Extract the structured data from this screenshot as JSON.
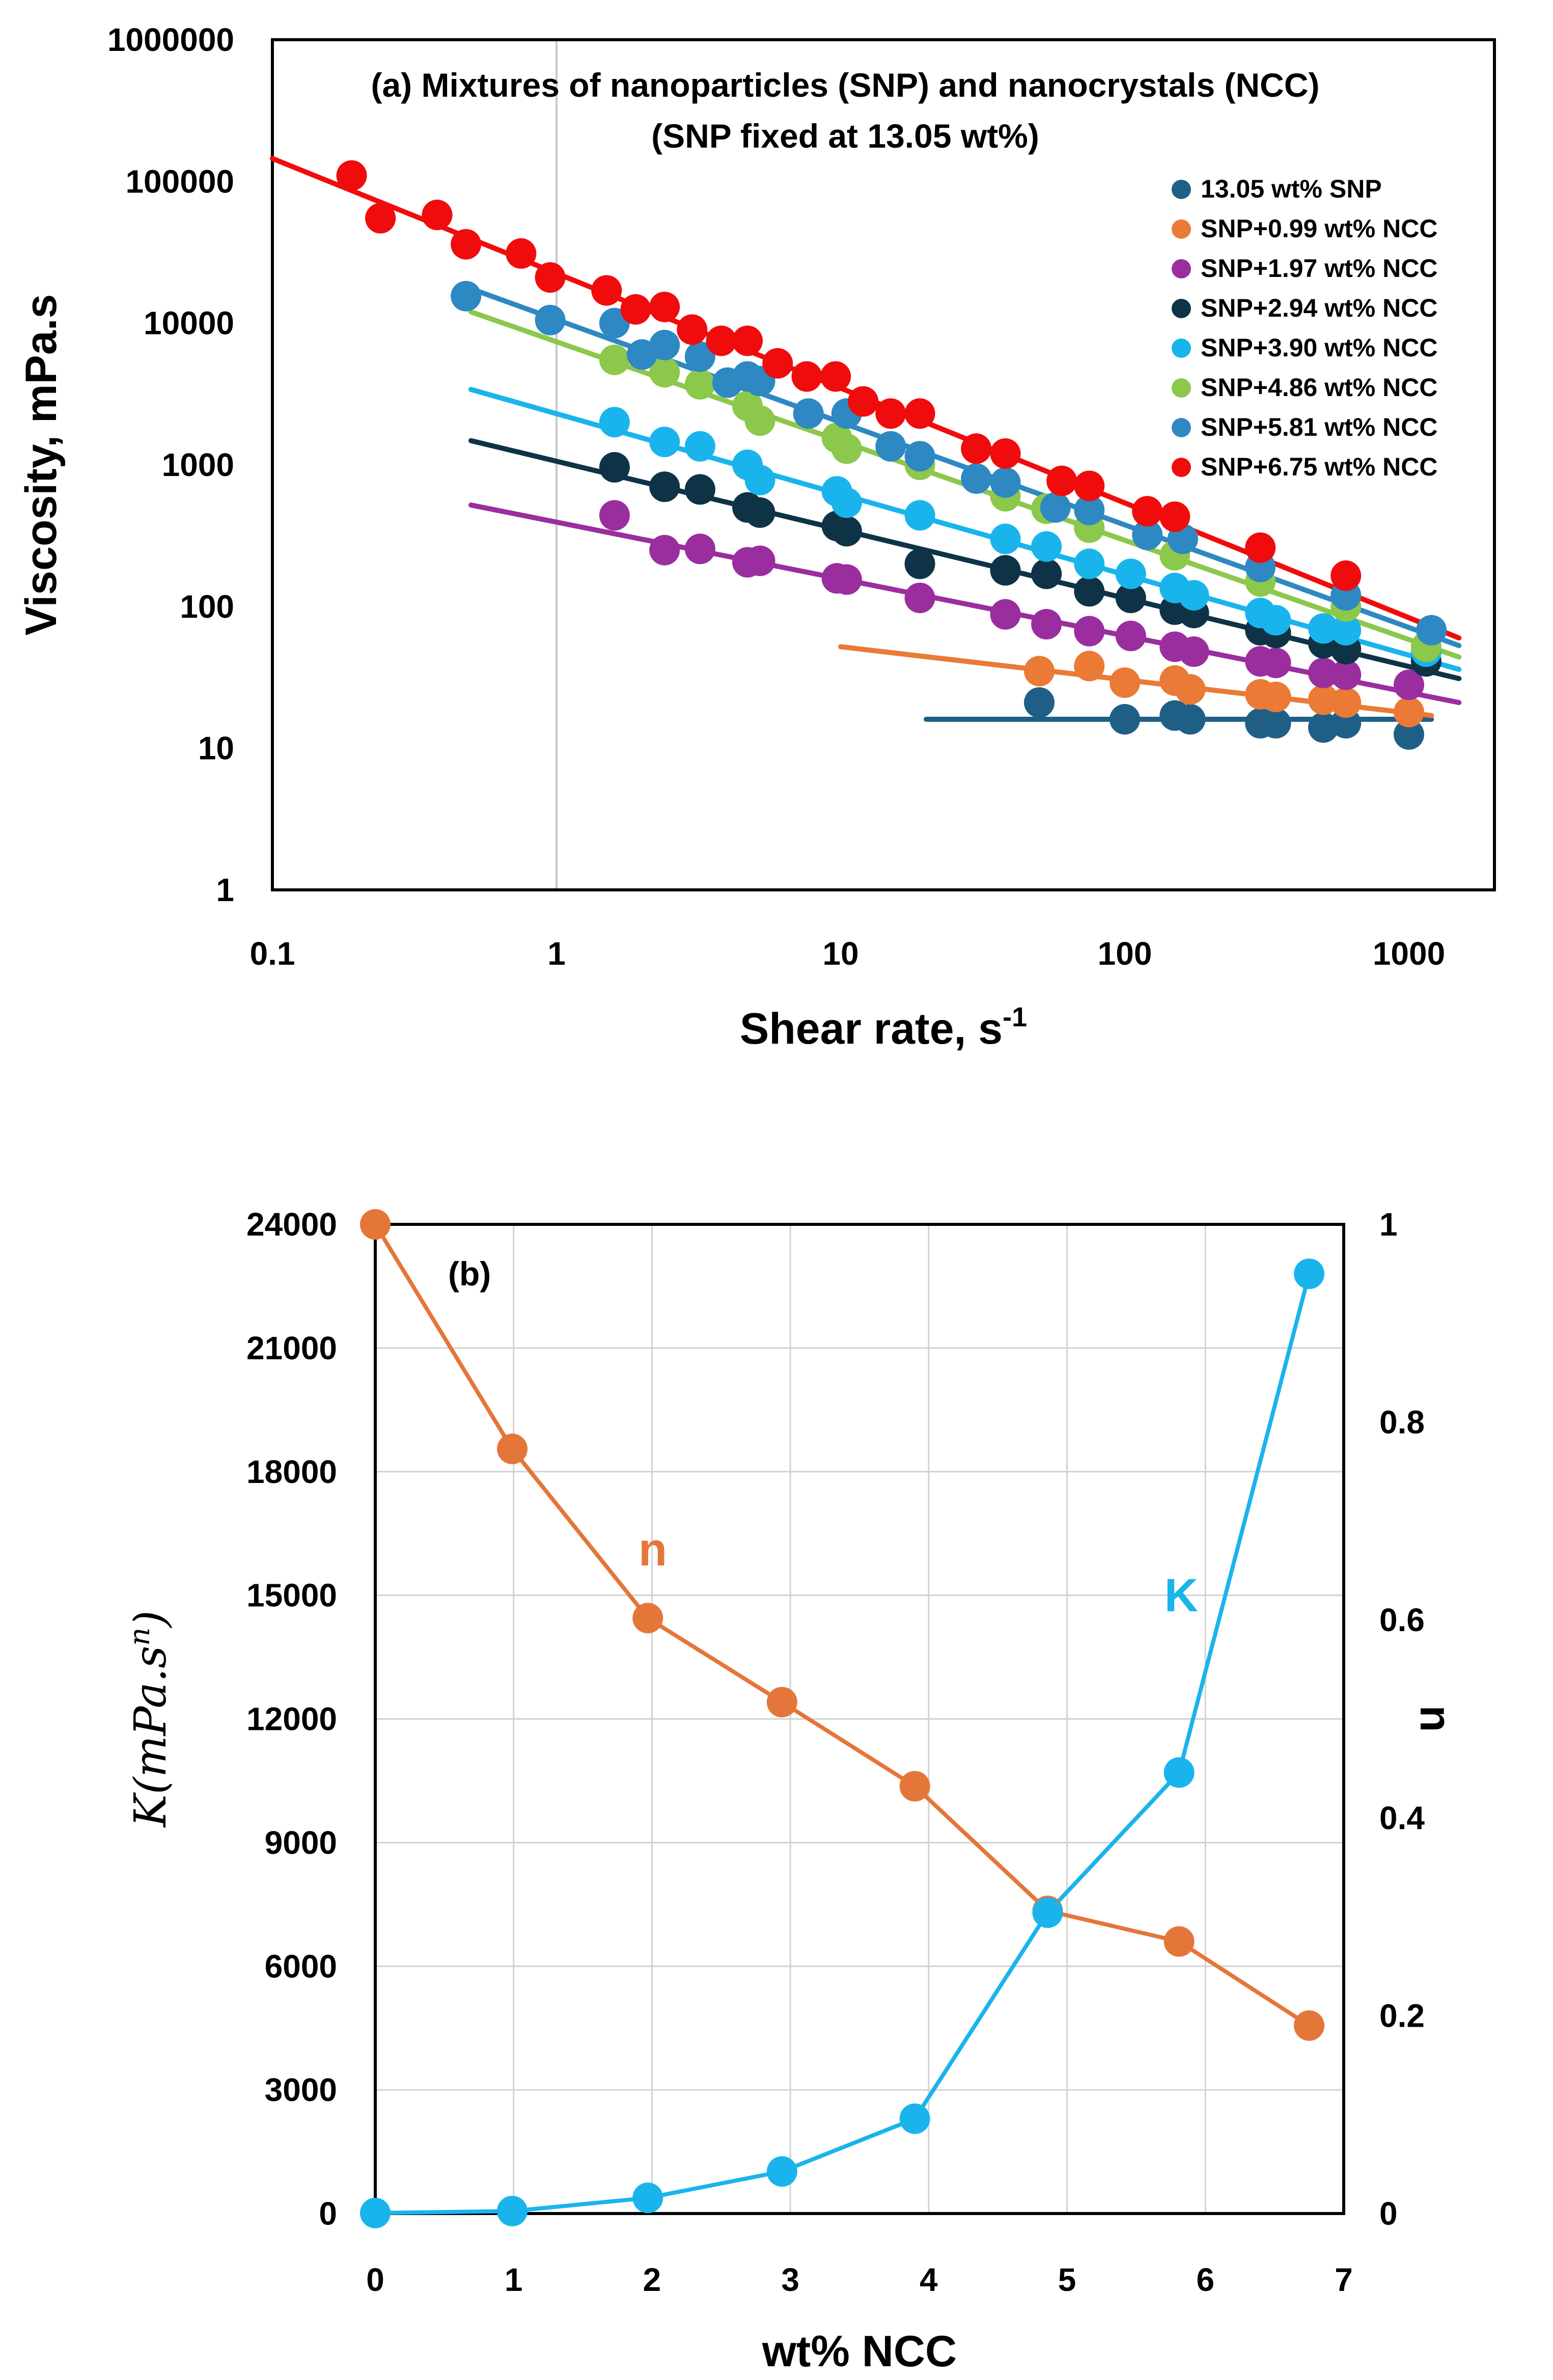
{
  "colors": {
    "s0": "#1f5f86",
    "s1": "#ea7a35",
    "s2": "#9a2e9f",
    "s3": "#0e3347",
    "s4": "#1ab4ec",
    "s5": "#8cc84b",
    "s6": "#2e88c2",
    "s7": "#f00c0c",
    "n": "#e4763a",
    "K": "#1ab4ec"
  },
  "chart_data": [
    {
      "id": "a",
      "type": "scatter",
      "xscale": "log",
      "yscale": "log",
      "title": "(a) Mixtures of nanoparticles (SNP) and nanocrystals (NCC)",
      "subtitle": "(SNP fixed at 13.05 wt%)",
      "xlabel": "Shear rate, s",
      "xlabel_sup": "-1",
      "ylabel": "Viscosity, mPa.s",
      "xlim": [
        0.1,
        2000
      ],
      "ylim": [
        1,
        1000000
      ],
      "xticks": [
        "0.1",
        "1",
        "10",
        "100",
        "1000"
      ],
      "yticks": [
        "1",
        "10",
        "100",
        "1000",
        "10000",
        "100000",
        "1000000"
      ],
      "legend_position": "top-right",
      "series": [
        {
          "name": "13.05 wt% SNP",
          "color": "#1f5f86",
          "x": [
            50,
            100,
            150,
            170,
            300,
            340,
            500,
            600,
            1000
          ],
          "y": [
            21,
            16,
            17,
            16,
            15,
            15,
            14,
            15,
            12.5
          ],
          "fit": [
            [
              20,
              16
            ],
            [
              1200,
              16
            ]
          ]
        },
        {
          "name": "SNP+0.99 wt% NCC",
          "color": "#ea7a35",
          "x": [
            50,
            75,
            100,
            150,
            170,
            300,
            340,
            500,
            600,
            1000
          ],
          "y": [
            35,
            38,
            29,
            30,
            26,
            24,
            23,
            22,
            21,
            18
          ],
          "fit": [
            [
              10,
              52
            ],
            [
              1200,
              17
            ]
          ]
        },
        {
          "name": "SNP+1.97 wt% NCC",
          "color": "#9a2e9f",
          "x": [
            1.6,
            2.4,
            3.2,
            4.7,
            5.2,
            9.7,
            10.5,
            19,
            38,
            53,
            75,
            105,
            150,
            175,
            300,
            340,
            500,
            600,
            1000
          ],
          "y": [
            440,
            250,
            255,
            205,
            210,
            158,
            155,
            115,
            88,
            75,
            67,
            62,
            52,
            48,
            41,
            40,
            34,
            33,
            28
          ],
          "fit": [
            [
              0.5,
              520
            ],
            [
              1500,
              21
            ]
          ]
        },
        {
          "name": "SNP+2.94 wt% NCC",
          "color": "#0e3347",
          "x": [
            1.6,
            2.4,
            3.2,
            4.7,
            5.2,
            9.7,
            10.5,
            19,
            38,
            53,
            75,
            105,
            150,
            175,
            300,
            340,
            500,
            600,
            1150
          ],
          "y": [
            960,
            700,
            670,
            500,
            460,
            370,
            340,
            200,
            180,
            170,
            128,
            115,
            95,
            90,
            68,
            65,
            55,
            50,
            41
          ],
          "fit": [
            [
              0.5,
              1480
            ],
            [
              1500,
              31
            ]
          ]
        },
        {
          "name": "SNP+3.90 wt% NCC",
          "color": "#1ab4ec",
          "x": [
            1.6,
            2.4,
            3.2,
            4.7,
            5.2,
            9.7,
            10.5,
            19,
            38,
            53,
            75,
            105,
            150,
            175,
            300,
            340,
            500,
            600,
            1150
          ],
          "y": [
            2000,
            1450,
            1350,
            1000,
            780,
            650,
            540,
            440,
            300,
            265,
            200,
            170,
            135,
            120,
            90,
            80,
            70,
            68,
            48
          ],
          "fit": [
            [
              0.5,
              3400
            ],
            [
              1500,
              36
            ]
          ]
        },
        {
          "name": "SNP+4.86 wt% NCC",
          "color": "#8cc84b",
          "x": [
            1.6,
            2.4,
            3.2,
            4.7,
            5.2,
            9.7,
            10.5,
            19,
            38,
            53,
            75,
            150,
            300,
            600,
            1150
          ],
          "y": [
            5500,
            4500,
            3700,
            2600,
            2050,
            1550,
            1300,
            1000,
            600,
            490,
            360,
            230,
            150,
            100,
            52
          ],
          "fit": [
            [
              0.5,
              12000
            ],
            [
              1500,
              44
            ]
          ]
        },
        {
          "name": "SNP+5.81 wt% NCC",
          "color": "#2e88c2",
          "x": [
            0.48,
            0.95,
            1.6,
            2.0,
            2.4,
            3.2,
            4.0,
            4.7,
            5.2,
            7.7,
            10.5,
            15,
            19,
            30,
            38,
            57,
            75,
            120,
            160,
            300,
            600,
            1200
          ],
          "y": [
            15500,
            10500,
            10000,
            6000,
            7000,
            5800,
            3800,
            4200,
            3900,
            2300,
            2300,
            1350,
            1150,
            800,
            750,
            500,
            480,
            320,
            300,
            190,
            120,
            68
          ],
          "fit": [
            [
              0.48,
              18000
            ],
            [
              1500,
              53
            ]
          ]
        },
        {
          "name": "SNP+6.75 wt% NCC",
          "color": "#f00c0c",
          "x": [
            0.19,
            0.24,
            0.38,
            0.48,
            0.75,
            0.95,
            1.5,
            1.9,
            2.4,
            3.0,
            3.8,
            4.7,
            6.0,
            7.6,
            9.6,
            12,
            15,
            19,
            30,
            38,
            60,
            75,
            120,
            150,
            300,
            600
          ],
          "y": [
            110000,
            55000,
            58000,
            36000,
            31000,
            21000,
            17000,
            12500,
            13000,
            9000,
            7500,
            7500,
            5200,
            4200,
            4200,
            2800,
            2300,
            2300,
            1300,
            1200,
            770,
            710,
            470,
            430,
            260,
            165
          ],
          "fit": [
            [
              0.1,
              145000
            ],
            [
              1500,
              60
            ]
          ]
        }
      ]
    },
    {
      "id": "b",
      "type": "line",
      "title": "(b)",
      "xlabel": "wt% NCC",
      "ylabel_left": "K(mPa.s",
      "ylabel_left_sup": "n",
      "ylabel_left_close": ")",
      "ylabel_right": "n",
      "xlim": [
        0,
        7
      ],
      "ylim_left": [
        0,
        24000
      ],
      "ylim_right": [
        0,
        1
      ],
      "xticks": [
        "0",
        "1",
        "2",
        "3",
        "4",
        "5",
        "6",
        "7"
      ],
      "yticks_left": [
        "0",
        "3000",
        "6000",
        "9000",
        "12000",
        "15000",
        "18000",
        "21000",
        "24000"
      ],
      "yticks_right": [
        "0",
        "0.2",
        "0.4",
        "0.6",
        "0.8",
        "1"
      ],
      "series": [
        {
          "name": "n",
          "axis": "right",
          "color": "#e4763a",
          "x": [
            0,
            0.99,
            1.97,
            2.94,
            3.9,
            4.86,
            5.81,
            6.75
          ],
          "y": [
            1.0,
            0.773,
            0.602,
            0.517,
            0.432,
            0.306,
            0.275,
            0.19
          ]
        },
        {
          "name": "K",
          "axis": "left",
          "color": "#1ab4ec",
          "x": [
            0,
            0.99,
            1.97,
            2.94,
            3.9,
            4.86,
            5.81,
            6.75
          ],
          "y": [
            12,
            60,
            380,
            1020,
            2300,
            7300,
            10700,
            22800
          ]
        }
      ],
      "annotations": {
        "n_label": "n",
        "K_label": "K"
      }
    }
  ]
}
